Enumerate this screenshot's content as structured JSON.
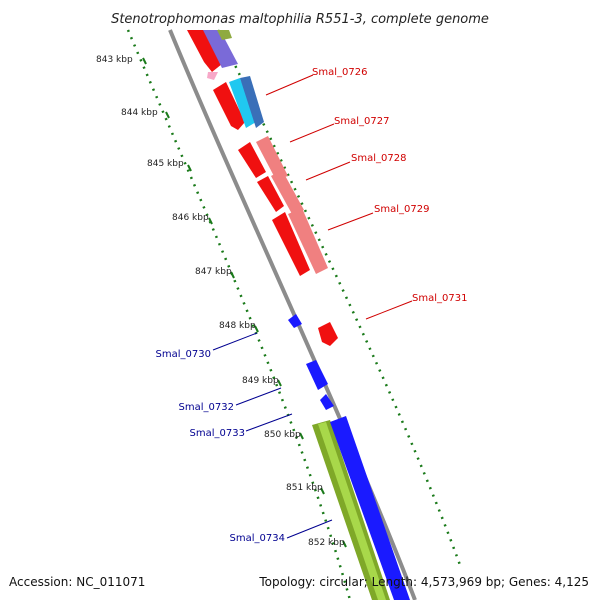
{
  "title": "Stenotrophomonas maltophilia R551-3, complete genome",
  "footer": {
    "accession": "Accession: NC_011071",
    "summary": "Topology: circular; Length: 4,573,969 bp; Genes: 4,125"
  },
  "colors": {
    "forward_label": "#d00000",
    "reverse_label": "#000090",
    "backbone": "#8c8c8c",
    "scale_dots": "#1a7a1a"
  },
  "kbp_ticks": [
    "843 kbp",
    "844 kbp",
    "845 kbp",
    "846 kbp",
    "847 kbp",
    "848 kbp",
    "849 kbp",
    "850 kbp",
    "851 kbp",
    "852 kbp"
  ],
  "forward_labels": [
    "Smal_0726",
    "Smal_0727",
    "Smal_0728",
    "Smal_0729",
    "Smal_0731"
  ],
  "reverse_labels": [
    "Smal_0730",
    "Smal_0732",
    "Smal_0733",
    "Smal_0734"
  ]
}
